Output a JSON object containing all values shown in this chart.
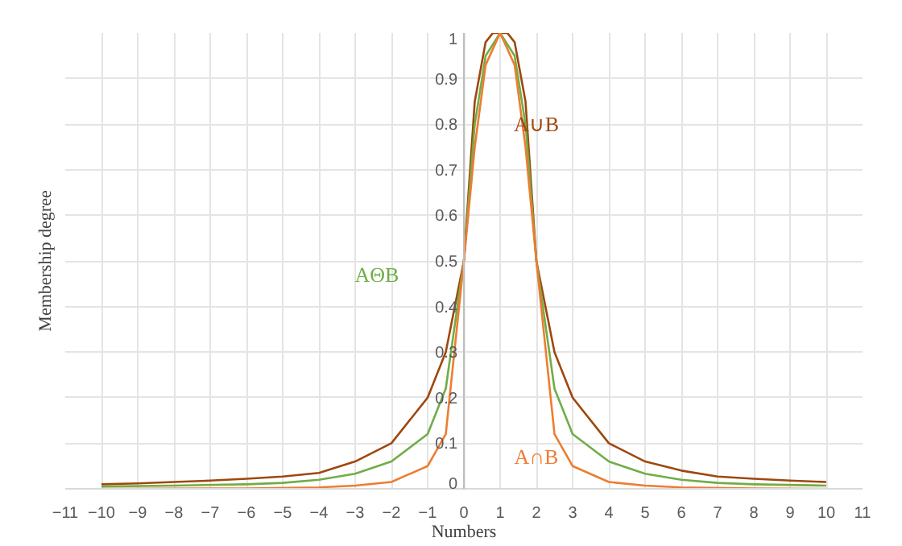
{
  "chart_data": {
    "type": "line",
    "xlabel": "Numbers",
    "ylabel": "Membership degree",
    "xlim": [
      -11,
      11
    ],
    "ylim": [
      0,
      1
    ],
    "xticks": [
      -11,
      -10,
      -9,
      -8,
      -7,
      -6,
      -5,
      -4,
      -3,
      -2,
      -1,
      0,
      1,
      2,
      3,
      4,
      5,
      6,
      7,
      8,
      9,
      10,
      11
    ],
    "yticks": [
      0,
      0.1,
      0.2,
      0.3,
      0.4,
      0.5,
      0.6,
      0.7,
      0.8,
      0.9,
      1
    ],
    "grid": true,
    "marker": "none",
    "line_style": "solid",
    "series": [
      {
        "color": "#9e480e",
        "x": [
          -10,
          -9,
          -8,
          -7,
          -6,
          -5,
          -4,
          -3,
          -2,
          -1,
          -0.5,
          0,
          0.3,
          0.6,
          0.8,
          1,
          1.2,
          1.4,
          1.7,
          2,
          2.5,
          3,
          4,
          5,
          6,
          7,
          8,
          9,
          10
        ],
        "values": [
          0.01,
          0.012,
          0.015,
          0.018,
          0.022,
          0.027,
          0.035,
          0.06,
          0.1,
          0.2,
          0.3,
          0.5,
          0.85,
          0.98,
          1,
          1,
          1,
          0.98,
          0.85,
          0.5,
          0.3,
          0.2,
          0.1,
          0.06,
          0.04,
          0.027,
          0.022,
          0.018,
          0.015
        ]
      },
      {
        "color": "#70ad47",
        "x": [
          -10,
          -8,
          -6,
          -5,
          -4,
          -3,
          -2,
          -1,
          -0.5,
          0,
          0.3,
          0.6,
          1,
          1.4,
          1.7,
          2,
          2.5,
          3,
          4,
          5,
          6,
          7,
          8,
          10
        ],
        "values": [
          0.005,
          0.007,
          0.01,
          0.013,
          0.02,
          0.033,
          0.06,
          0.12,
          0.22,
          0.5,
          0.8,
          0.95,
          1,
          0.95,
          0.8,
          0.5,
          0.22,
          0.12,
          0.06,
          0.033,
          0.02,
          0.013,
          0.01,
          0.007
        ]
      },
      {
        "color": "#ed7d31",
        "x": [
          -10,
          -6,
          -4,
          -3,
          -2,
          -1,
          -0.5,
          0,
          0.3,
          0.6,
          1,
          1.4,
          1.7,
          2,
          2.5,
          3,
          4,
          5,
          6,
          8,
          10
        ],
        "values": [
          0,
          0.001,
          0.003,
          0.007,
          0.015,
          0.05,
          0.12,
          0.5,
          0.75,
          0.93,
          1,
          0.93,
          0.75,
          0.5,
          0.12,
          0.05,
          0.015,
          0.007,
          0.003,
          0.001,
          0
        ]
      }
    ],
    "annotations": [
      "A∪B",
      "AΘB",
      "A∩B"
    ]
  }
}
